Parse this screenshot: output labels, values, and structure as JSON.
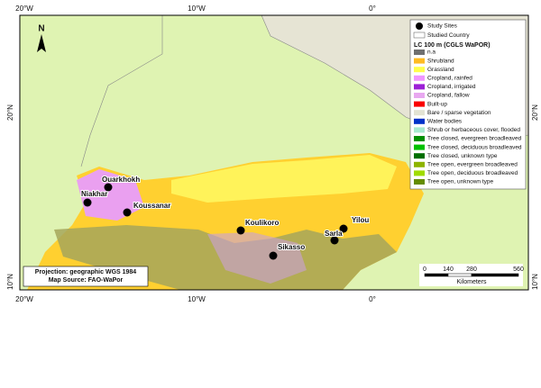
{
  "graticule": {
    "longitudes": [
      "20°W",
      "10°W",
      "0°"
    ],
    "latitudes": [
      "20°N",
      "10°N"
    ]
  },
  "north_arrow": "N",
  "sites": [
    "Ouarkhokh",
    "Niakhar",
    "Koussanar",
    "Koulikoro",
    "Yilou",
    "Sarla",
    "Sikasso"
  ],
  "legend": {
    "study_sites": "Study Sites",
    "studied_country": "Studied Country",
    "title": "LC 100 m (CGLS WaPOR)",
    "items": [
      {
        "label": "n.a",
        "color": "#707070"
      },
      {
        "label": "Shrubland",
        "color": "#ffbb22"
      },
      {
        "label": "Grassland",
        "color": "#ffff4c"
      },
      {
        "label": "Cropland, rainfed",
        "color": "#f096ff"
      },
      {
        "label": "Cropland, irrigated",
        "color": "#9c1fd6"
      },
      {
        "label": "Cropland, fallow",
        "color": "#e8a8f0"
      },
      {
        "label": "Built-up",
        "color": "#fa0000"
      },
      {
        "label": "Bare / sparse vegetation",
        "color": "#e3e3d3"
      },
      {
        "label": "Water bodies",
        "color": "#0032c8"
      },
      {
        "label": "Shrub or herbaceous cover, flooded",
        "color": "#a8ead0"
      },
      {
        "label": "Tree closed, evergreen broadleaved",
        "color": "#008f00"
      },
      {
        "label": "Tree closed, deciduous broadleaved",
        "color": "#00c000"
      },
      {
        "label": "Tree closed, unknown type",
        "color": "#006e00"
      },
      {
        "label": "Tree open, evergreen broadleaved",
        "color": "#8db400"
      },
      {
        "label": "Tree open, deciduous broadleaved",
        "color": "#a0dc00"
      },
      {
        "label": "Tree open, unknown type",
        "color": "#648c00"
      }
    ]
  },
  "scale_bar": {
    "ticks": [
      0,
      140,
      280,
      560
    ],
    "unit": "Kilometers"
  },
  "info": {
    "projection": "Projection: geographic WGS 1984",
    "source": "Map Source: FAO-WaPor"
  }
}
